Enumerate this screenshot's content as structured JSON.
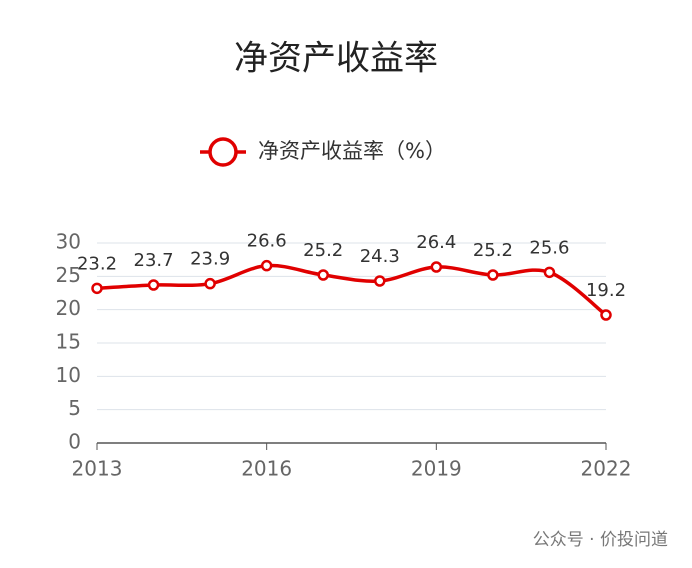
{
  "chart_data": {
    "type": "line",
    "title": "净资产收益率",
    "x": [
      2013,
      2014,
      2015,
      2016,
      2017,
      2018,
      2019,
      2020,
      2021,
      2022
    ],
    "series": [
      {
        "name": "净资产收益率（%）",
        "color": "#e00000",
        "values": [
          23.2,
          23.7,
          23.9,
          26.6,
          25.2,
          24.3,
          26.4,
          25.2,
          25.6,
          19.2
        ]
      }
    ],
    "xlim": [
      2013,
      2022
    ],
    "xticks": [
      2013,
      2016,
      2019,
      2022
    ],
    "ylim": [
      0,
      30
    ],
    "yticks": [
      0,
      5,
      10,
      15,
      20,
      25,
      30
    ],
    "grid": true,
    "annotation": "公众号 · 价投问道"
  }
}
